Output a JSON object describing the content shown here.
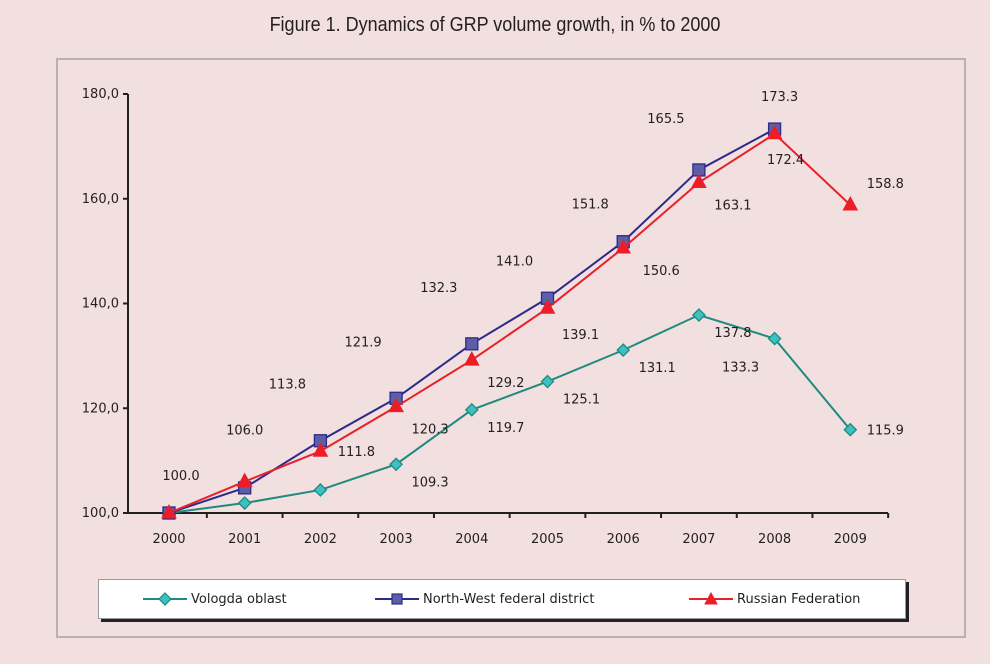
{
  "figure_title": "Figure 1. Dynamics of GRP volume growth, in % to 2000",
  "chart_data": {
    "type": "line",
    "title": "Figure 1. Dynamics of GRP volume growth, in % to 2000",
    "xlabel": "",
    "ylabel": "",
    "categories": [
      "2000",
      "2001",
      "2002",
      "2003",
      "2004",
      "2005",
      "2006",
      "2007",
      "2008",
      "2009"
    ],
    "ylim": [
      100,
      180
    ],
    "yticks": [
      100,
      120,
      140,
      160,
      180
    ],
    "ytick_labels": [
      "100,0",
      "120,0",
      "140,0",
      "160,0",
      "180,0"
    ],
    "grid": false,
    "legend_position": "bottom",
    "series": [
      {
        "name": "Vologda oblast",
        "color": "#1f8a80",
        "marker_fill": "#3cc0c0",
        "marker": "diamond",
        "values": [
          100.0,
          101.9,
          104.4,
          109.3,
          119.7,
          125.1,
          131.1,
          137.8,
          133.3,
          115.9
        ],
        "labels": [
          null,
          null,
          null,
          "109.3",
          "119.7",
          "125.1",
          "131.1",
          "137.8",
          "133.3",
          "115.9"
        ]
      },
      {
        "name": "North-West federal district",
        "color": "#2e2a8a",
        "marker_fill": "#5a5fa6",
        "marker": "square",
        "values": [
          100.0,
          104.8,
          113.8,
          121.9,
          132.3,
          141.0,
          151.8,
          165.5,
          173.3,
          null
        ],
        "labels": [
          "100.0",
          null,
          "113.8",
          "121.9",
          "132.3",
          "141.0",
          "151.8",
          "165.5",
          "173.3",
          null
        ]
      },
      {
        "name": "Russian Federation",
        "color": "#e8202a",
        "marker_fill": "#ee1c25",
        "marker": "triangle",
        "values": [
          100.0,
          106.0,
          111.8,
          120.3,
          129.2,
          139.1,
          150.6,
          163.1,
          172.4,
          158.8
        ],
        "labels": [
          null,
          "106.0",
          "111.8",
          "120.3",
          "129.2",
          "139.1",
          "150.6",
          "163.1",
          "172.4",
          "158.8"
        ]
      }
    ]
  },
  "legend": {
    "items": [
      {
        "label": "Vologda oblast",
        "icon": "diamond-marker-icon"
      },
      {
        "label": "North-West federal district",
        "icon": "square-marker-icon"
      },
      {
        "label": "Russian Federation",
        "icon": "triangle-marker-icon"
      }
    ]
  }
}
